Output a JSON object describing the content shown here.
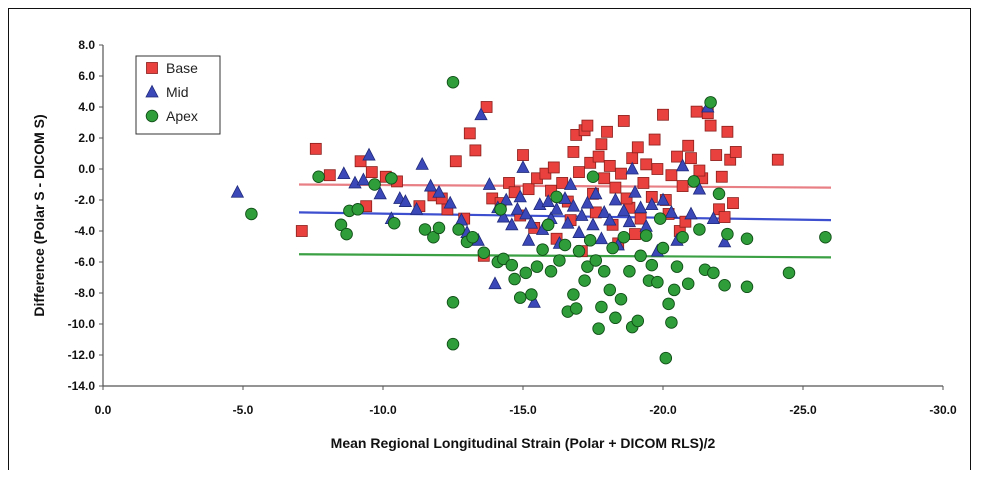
{
  "chart_data": {
    "type": "scatter",
    "xlabel": "Mean Regional Longitudinal Strain (Polar + DICOM RLS)/2",
    "ylabel": "Difference (Polar S - DICOM S)",
    "xlim": [
      0,
      -30
    ],
    "ylim": [
      -14,
      8
    ],
    "x_ticks": [
      "0.0",
      "-5.0",
      "-10.0",
      "-15.0",
      "-20.0",
      "-25.0",
      "-30.0"
    ],
    "y_ticks": [
      "8.0",
      "6.0",
      "4.0",
      "2.0",
      "0.0",
      "-2.0",
      "-4.0",
      "-6.0",
      "-8.0",
      "-10.0",
      "-12.0",
      "-14.0"
    ],
    "legend_position": "top-left",
    "grid": false,
    "series": [
      {
        "name": "Base",
        "marker": "square",
        "color": "#e8413e",
        "points": [
          [
            -7.6,
            1.3
          ],
          [
            -8.1,
            -0.4
          ],
          [
            -9.2,
            0.5
          ],
          [
            -9.6,
            -0.2
          ],
          [
            -10.1,
            -0.5
          ],
          [
            -10.5,
            -0.8
          ],
          [
            -11.3,
            -2.4
          ],
          [
            -11.8,
            -1.7
          ],
          [
            -12.3,
            -2.6
          ],
          [
            -12.6,
            0.5
          ],
          [
            -12.9,
            -3.2
          ],
          [
            -13.1,
            2.3
          ],
          [
            -13.3,
            1.2
          ],
          [
            -13.7,
            4.0
          ],
          [
            -13.9,
            -1.9
          ],
          [
            -14.2,
            -2.2
          ],
          [
            -14.5,
            -0.9
          ],
          [
            -14.7,
            -1.5
          ],
          [
            -15.0,
            0.9
          ],
          [
            -15.2,
            -1.3
          ],
          [
            -15.5,
            -0.6
          ],
          [
            -15.8,
            -0.3
          ],
          [
            -16.1,
            0.1
          ],
          [
            -16.4,
            -0.9
          ],
          [
            -16.6,
            -2.1
          ],
          [
            -16.8,
            1.1
          ],
          [
            -16.9,
            2.2
          ],
          [
            -17.0,
            -0.2
          ],
          [
            -17.2,
            2.5
          ],
          [
            -17.3,
            2.8
          ],
          [
            -17.4,
            0.4
          ],
          [
            -17.5,
            -1.6
          ],
          [
            -17.6,
            -2.8
          ],
          [
            -17.8,
            1.6
          ],
          [
            -17.9,
            -0.6
          ],
          [
            -18.0,
            2.4
          ],
          [
            -18.1,
            0.2
          ],
          [
            -18.2,
            -3.6
          ],
          [
            -18.3,
            -1.2
          ],
          [
            -18.5,
            -0.3
          ],
          [
            -18.6,
            3.1
          ],
          [
            -18.8,
            -2.5
          ],
          [
            -18.9,
            0.7
          ],
          [
            -19.0,
            -4.2
          ],
          [
            -19.1,
            1.4
          ],
          [
            -19.3,
            -0.9
          ],
          [
            -19.4,
            0.3
          ],
          [
            -19.6,
            -1.8
          ],
          [
            -19.8,
            0.0
          ],
          [
            -20.0,
            3.5
          ],
          [
            -20.1,
            -2.0
          ],
          [
            -20.3,
            -0.4
          ],
          [
            -20.5,
            0.8
          ],
          [
            -20.6,
            -4.0
          ],
          [
            -20.7,
            -1.1
          ],
          [
            -20.9,
            1.5
          ],
          [
            -21.0,
            0.7
          ],
          [
            -21.2,
            3.7
          ],
          [
            -21.4,
            -0.6
          ],
          [
            -21.6,
            3.6
          ],
          [
            -21.7,
            2.8
          ],
          [
            -21.9,
            0.9
          ],
          [
            -22.0,
            -2.6
          ],
          [
            -22.1,
            -0.5
          ],
          [
            -22.3,
            2.4
          ],
          [
            -22.4,
            0.6
          ],
          [
            -22.6,
            1.1
          ],
          [
            -22.5,
            -2.2
          ],
          [
            -24.1,
            0.6
          ],
          [
            -7.1,
            -4.0
          ],
          [
            -9.4,
            -2.4
          ],
          [
            -13.6,
            -5.6
          ],
          [
            -16.2,
            -4.5
          ],
          [
            -17.1,
            -5.3
          ],
          [
            -18.4,
            -4.8
          ],
          [
            -19.2,
            -3.2
          ],
          [
            -15.4,
            -3.8
          ],
          [
            -16.7,
            -3.3
          ],
          [
            -20.2,
            -2.9
          ],
          [
            -21.3,
            -0.1
          ],
          [
            -12.1,
            -1.9
          ],
          [
            -14.9,
            -3.0
          ],
          [
            -17.7,
            0.8
          ],
          [
            -19.7,
            1.9
          ],
          [
            -18.7,
            -1.9
          ],
          [
            -16.0,
            -1.4
          ],
          [
            -20.8,
            -3.4
          ],
          [
            -22.2,
            -3.1
          ]
        ]
      },
      {
        "name": "Mid",
        "marker": "triangle",
        "color": "#3b48b7",
        "points": [
          [
            -4.8,
            -1.5
          ],
          [
            -8.6,
            -0.3
          ],
          [
            -9.0,
            -0.9
          ],
          [
            -9.3,
            -0.7
          ],
          [
            -9.5,
            0.9
          ],
          [
            -9.9,
            -1.6
          ],
          [
            -10.3,
            -3.2
          ],
          [
            -10.6,
            -1.9
          ],
          [
            -10.8,
            -2.1
          ],
          [
            -11.2,
            -2.6
          ],
          [
            -11.4,
            0.3
          ],
          [
            -11.7,
            -1.1
          ],
          [
            -12.0,
            -1.5
          ],
          [
            -12.4,
            -2.2
          ],
          [
            -12.8,
            -3.3
          ],
          [
            -13.0,
            -4.1
          ],
          [
            -13.4,
            -4.6
          ],
          [
            -13.5,
            3.5
          ],
          [
            -13.8,
            -1.0
          ],
          [
            -14.0,
            -7.4
          ],
          [
            -14.3,
            -3.1
          ],
          [
            -14.4,
            -2.0
          ],
          [
            -14.6,
            -3.6
          ],
          [
            -14.8,
            -2.6
          ],
          [
            -14.9,
            -1.8
          ],
          [
            -15.1,
            -2.9
          ],
          [
            -15.2,
            -4.6
          ],
          [
            -15.3,
            -3.5
          ],
          [
            -15.4,
            -8.6
          ],
          [
            -15.6,
            -2.3
          ],
          [
            -15.7,
            -3.9
          ],
          [
            -15.9,
            -2.1
          ],
          [
            -16.0,
            -3.2
          ],
          [
            -16.2,
            -2.6
          ],
          [
            -16.3,
            -4.8
          ],
          [
            -16.5,
            -1.9
          ],
          [
            -16.6,
            -3.5
          ],
          [
            -16.8,
            -2.4
          ],
          [
            -17.0,
            -4.1
          ],
          [
            -17.1,
            -3.0
          ],
          [
            -17.3,
            -2.2
          ],
          [
            -17.5,
            -3.6
          ],
          [
            -17.6,
            -1.6
          ],
          [
            -17.8,
            -4.5
          ],
          [
            -17.9,
            -2.8
          ],
          [
            -18.1,
            -3.3
          ],
          [
            -18.3,
            -2.0
          ],
          [
            -18.4,
            -4.9
          ],
          [
            -18.6,
            -2.7
          ],
          [
            -18.8,
            -3.4
          ],
          [
            -19.0,
            -1.5
          ],
          [
            -19.2,
            -2.5
          ],
          [
            -19.4,
            -3.7
          ],
          [
            -19.6,
            -2.3
          ],
          [
            -19.8,
            -5.3
          ],
          [
            -20.0,
            -2.0
          ],
          [
            -20.3,
            -2.8
          ],
          [
            -20.5,
            -4.6
          ],
          [
            -20.7,
            0.2
          ],
          [
            -21.0,
            -2.9
          ],
          [
            -21.3,
            -1.3
          ],
          [
            -21.6,
            4.0
          ],
          [
            -21.8,
            -3.2
          ],
          [
            -22.2,
            -4.7
          ],
          [
            -15.0,
            0.1
          ],
          [
            -14.1,
            -2.5
          ],
          [
            -16.7,
            -1.0
          ],
          [
            -18.9,
            0.0
          ]
        ]
      },
      {
        "name": "Apex",
        "marker": "circle",
        "color": "#2f9e3a",
        "points": [
          [
            -5.3,
            -2.9
          ],
          [
            -7.7,
            -0.5
          ],
          [
            -8.5,
            -3.6
          ],
          [
            -8.8,
            -2.7
          ],
          [
            -8.7,
            -4.2
          ],
          [
            -9.1,
            -2.6
          ],
          [
            -9.7,
            -1.0
          ],
          [
            -10.4,
            -3.5
          ],
          [
            -10.3,
            -0.6
          ],
          [
            -11.5,
            -3.9
          ],
          [
            -11.8,
            -4.4
          ],
          [
            -12.0,
            -3.8
          ],
          [
            -12.5,
            5.6
          ],
          [
            -12.5,
            -8.6
          ],
          [
            -12.5,
            -11.3
          ],
          [
            -12.7,
            -3.9
          ],
          [
            -13.0,
            -4.7
          ],
          [
            -13.2,
            -4.4
          ],
          [
            -13.6,
            -5.4
          ],
          [
            -14.1,
            -6.0
          ],
          [
            -14.3,
            -5.8
          ],
          [
            -14.6,
            -6.2
          ],
          [
            -14.7,
            -7.1
          ],
          [
            -14.9,
            -8.3
          ],
          [
            -15.1,
            -6.7
          ],
          [
            -15.3,
            -8.1
          ],
          [
            -15.5,
            -6.3
          ],
          [
            -15.7,
            -5.2
          ],
          [
            -15.9,
            -3.6
          ],
          [
            -16.0,
            -6.6
          ],
          [
            -16.3,
            -5.9
          ],
          [
            -16.5,
            -4.9
          ],
          [
            -16.6,
            -9.2
          ],
          [
            -16.8,
            -8.1
          ],
          [
            -16.9,
            -9.0
          ],
          [
            -17.0,
            -5.3
          ],
          [
            -17.2,
            -7.2
          ],
          [
            -17.3,
            -6.3
          ],
          [
            -17.4,
            -4.6
          ],
          [
            -17.6,
            -5.9
          ],
          [
            -17.7,
            -10.3
          ],
          [
            -17.8,
            -8.9
          ],
          [
            -17.9,
            -6.6
          ],
          [
            -18.1,
            -7.8
          ],
          [
            -18.2,
            -5.1
          ],
          [
            -18.3,
            -9.6
          ],
          [
            -18.5,
            -8.4
          ],
          [
            -18.6,
            -4.4
          ],
          [
            -18.8,
            -6.6
          ],
          [
            -18.9,
            -10.2
          ],
          [
            -19.1,
            -9.8
          ],
          [
            -19.2,
            -5.6
          ],
          [
            -19.4,
            -4.3
          ],
          [
            -19.5,
            -7.2
          ],
          [
            -19.6,
            -6.2
          ],
          [
            -19.8,
            -7.3
          ],
          [
            -20.0,
            -5.1
          ],
          [
            -20.1,
            -12.2
          ],
          [
            -20.2,
            -8.7
          ],
          [
            -20.3,
            -9.9
          ],
          [
            -20.4,
            -7.8
          ],
          [
            -20.5,
            -6.3
          ],
          [
            -20.7,
            -4.4
          ],
          [
            -20.9,
            -7.4
          ],
          [
            -21.1,
            -0.8
          ],
          [
            -21.3,
            -3.9
          ],
          [
            -21.5,
            -6.5
          ],
          [
            -21.7,
            4.3
          ],
          [
            -21.8,
            -6.7
          ],
          [
            -22.0,
            -1.6
          ],
          [
            -22.3,
            -4.2
          ],
          [
            -23.0,
            -4.5
          ],
          [
            -23.0,
            -7.6
          ],
          [
            -24.5,
            -6.7
          ],
          [
            -25.8,
            -4.4
          ],
          [
            -22.2,
            -7.5
          ],
          [
            -19.9,
            -3.2
          ],
          [
            -17.5,
            -0.5
          ],
          [
            -16.2,
            -1.8
          ],
          [
            -14.2,
            -2.6
          ]
        ]
      }
    ],
    "regression_lines": [
      {
        "series": "Base",
        "color": "#e87f85",
        "x": [
          -7.0,
          -26.0
        ],
        "y": [
          -1.0,
          -1.2
        ]
      },
      {
        "series": "Mid",
        "color": "#3d4fcf",
        "x": [
          -7.0,
          -26.0
        ],
        "y": [
          -2.8,
          -3.3
        ]
      },
      {
        "series": "Apex",
        "color": "#3aa043",
        "x": [
          -7.0,
          -26.0
        ],
        "y": [
          -5.5,
          -5.7
        ]
      }
    ]
  }
}
